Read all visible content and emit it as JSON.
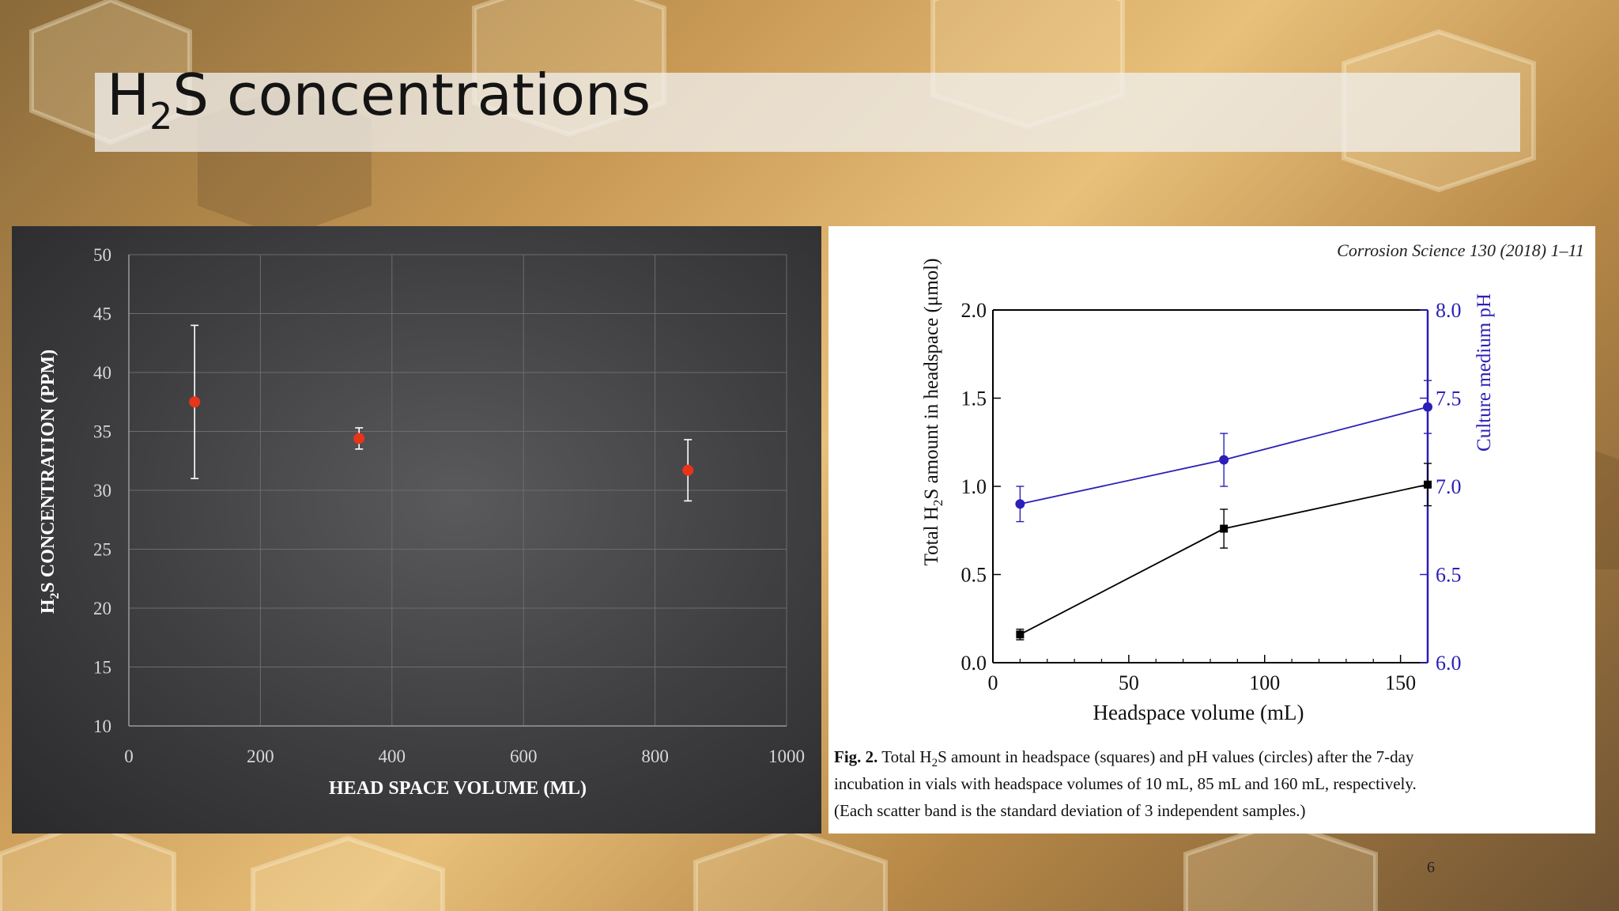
{
  "slide": {
    "title_main": "H",
    "title_sub": "2",
    "title_rest": "S concentrations",
    "page_number": "6"
  },
  "chart_data": [
    {
      "type": "scatter",
      "title": "",
      "xlabel": "HEAD SPACE VOLUME (ML)",
      "ylabel_pre": "H",
      "ylabel_sub": "2",
      "ylabel_post": "S CONCENTRATION (PPM)",
      "xlim": [
        0,
        1000
      ],
      "ylim": [
        10,
        50
      ],
      "x_ticks": [
        0,
        200,
        400,
        600,
        800,
        1000
      ],
      "y_ticks": [
        10,
        15,
        20,
        25,
        30,
        35,
        40,
        45,
        50
      ],
      "grid": true,
      "series": [
        {
          "x": [
            100,
            350,
            850
          ],
          "y": [
            37.5,
            34.4,
            31.7
          ],
          "err_low": [
            31.0,
            33.5,
            29.1
          ],
          "err_high": [
            44.0,
            35.3,
            34.3
          ],
          "color": "#e8341a"
        }
      ]
    },
    {
      "type": "line",
      "citation": "Corrosion Science 130 (2018) 1–11",
      "xlabel": "Headspace volume (mL)",
      "ylabel_left_pre": "Total H",
      "ylabel_left_sub": "2",
      "ylabel_left_post": "S amount in headspace (μmol)",
      "ylabel_right": "Culture medium pH",
      "xlim": [
        0,
        160
      ],
      "x_ticks": [
        0,
        50,
        100,
        150
      ],
      "ylim_left": [
        0.0,
        2.0
      ],
      "y_ticks_left": [
        "0.0",
        "0.5",
        "1.0",
        "1.5",
        "2.0"
      ],
      "ylim_right": [
        6.0,
        8.0
      ],
      "y_ticks_right": [
        "6.0",
        "6.5",
        "7.0",
        "7.5",
        "8.0"
      ],
      "series": [
        {
          "marker": "square",
          "color": "#000000",
          "x": [
            10,
            85,
            160
          ],
          "y": [
            0.16,
            0.76,
            1.01
          ],
          "err": [
            0.03,
            0.11,
            0.12
          ]
        },
        {
          "marker": "circle",
          "color": "#2b1fb8",
          "x": [
            10,
            85,
            160
          ],
          "y": [
            6.9,
            7.15,
            7.45
          ],
          "err": [
            0.1,
            0.15,
            0.15
          ]
        }
      ],
      "caption_label": "Fig. 2.",
      "caption_line1_pre": "Total H",
      "caption_line1_sub": "2",
      "caption_line1_post": "S amount in headspace (squares) and pH values (circles) after the 7-day",
      "caption_line2": "incubation in vials with headspace volumes of 10 mL, 85 mL and 160 mL, respectively.",
      "caption_line3": "(Each scatter band is the standard deviation of 3 independent samples.)"
    }
  ]
}
